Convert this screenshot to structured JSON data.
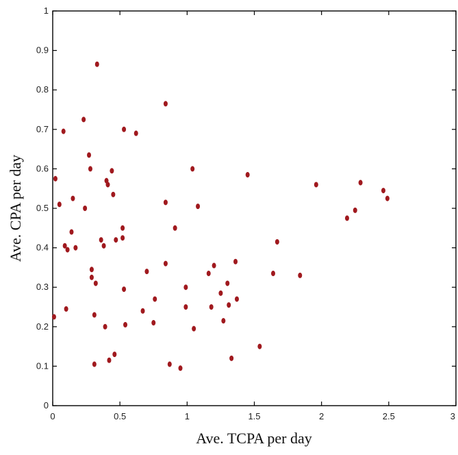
{
  "chart_data": {
    "type": "scatter",
    "title": "",
    "xlabel": "Ave. TCPA per day",
    "ylabel": "Ave. CPA  per day",
    "xlim": [
      0,
      3
    ],
    "ylim": [
      0,
      1
    ],
    "x_ticks": [
      "0",
      "0.5",
      "1",
      "1.5",
      "2",
      "2.5",
      "3"
    ],
    "y_ticks": [
      "0",
      "0.1",
      "0.2",
      "0.3",
      "0.4",
      "0.5",
      "0.6",
      "0.7",
      "0.8",
      "0.9",
      "1"
    ],
    "grid": false,
    "legend": "none",
    "marker_color": "#a0191e",
    "series": [
      {
        "points": [
          [
            0.02,
            0.575
          ],
          [
            0.01,
            0.225
          ],
          [
            0.05,
            0.51
          ],
          [
            0.08,
            0.695
          ],
          [
            0.09,
            0.405
          ],
          [
            0.1,
            0.245
          ],
          [
            0.11,
            0.395
          ],
          [
            0.14,
            0.44
          ],
          [
            0.15,
            0.525
          ],
          [
            0.17,
            0.4
          ],
          [
            0.23,
            0.725
          ],
          [
            0.24,
            0.5
          ],
          [
            0.27,
            0.635
          ],
          [
            0.28,
            0.6
          ],
          [
            0.29,
            0.345
          ],
          [
            0.29,
            0.325
          ],
          [
            0.31,
            0.23
          ],
          [
            0.32,
            0.31
          ],
          [
            0.31,
            0.105
          ],
          [
            0.33,
            0.865
          ],
          [
            0.36,
            0.42
          ],
          [
            0.38,
            0.405
          ],
          [
            0.39,
            0.2
          ],
          [
            0.4,
            0.57
          ],
          [
            0.41,
            0.56
          ],
          [
            0.42,
            0.115
          ],
          [
            0.44,
            0.595
          ],
          [
            0.45,
            0.535
          ],
          [
            0.46,
            0.13
          ],
          [
            0.47,
            0.42
          ],
          [
            0.52,
            0.45
          ],
          [
            0.52,
            0.425
          ],
          [
            0.53,
            0.7
          ],
          [
            0.53,
            0.295
          ],
          [
            0.54,
            0.205
          ],
          [
            0.62,
            0.69
          ],
          [
            0.67,
            0.24
          ],
          [
            0.7,
            0.34
          ],
          [
            0.75,
            0.21
          ],
          [
            0.76,
            0.27
          ],
          [
            0.84,
            0.765
          ],
          [
            0.84,
            0.515
          ],
          [
            0.84,
            0.36
          ],
          [
            0.87,
            0.105
          ],
          [
            0.91,
            0.45
          ],
          [
            0.95,
            0.095
          ],
          [
            0.99,
            0.3
          ],
          [
            0.99,
            0.25
          ],
          [
            1.04,
            0.6
          ],
          [
            1.05,
            0.195
          ],
          [
            1.08,
            0.505
          ],
          [
            1.16,
            0.335
          ],
          [
            1.18,
            0.25
          ],
          [
            1.2,
            0.355
          ],
          [
            1.25,
            0.285
          ],
          [
            1.27,
            0.215
          ],
          [
            1.3,
            0.31
          ],
          [
            1.31,
            0.255
          ],
          [
            1.33,
            0.12
          ],
          [
            1.36,
            0.365
          ],
          [
            1.37,
            0.27
          ],
          [
            1.45,
            0.585
          ],
          [
            1.54,
            0.15
          ],
          [
            1.64,
            0.335
          ],
          [
            1.67,
            0.415
          ],
          [
            1.84,
            0.33
          ],
          [
            1.96,
            0.56
          ],
          [
            2.19,
            0.475
          ],
          [
            2.25,
            0.495
          ],
          [
            2.29,
            0.565
          ],
          [
            2.46,
            0.545
          ],
          [
            2.49,
            0.525
          ]
        ]
      }
    ]
  }
}
